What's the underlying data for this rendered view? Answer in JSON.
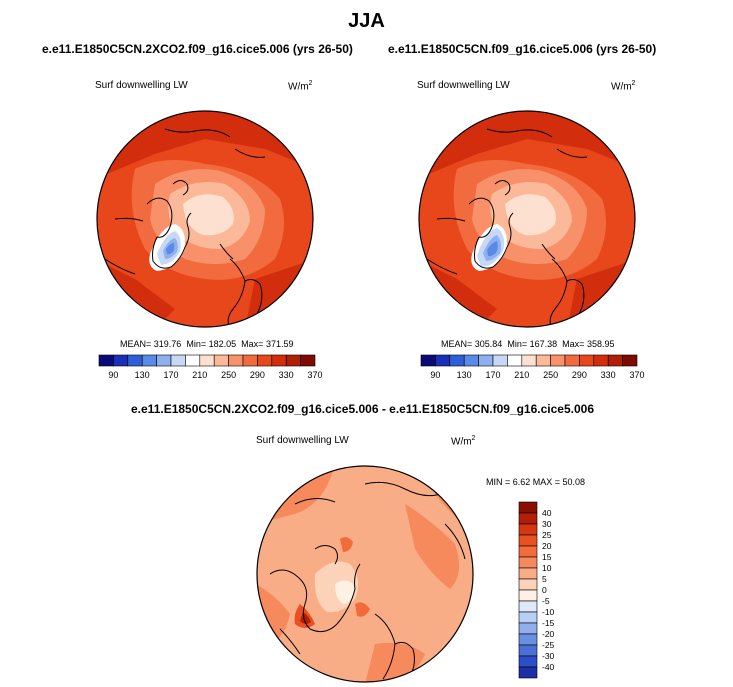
{
  "header": {
    "season": "JJA"
  },
  "panels": [
    {
      "case": "e.e11.E1850C5CN.2XCO2.f09_g16.cice5.006 (yrs 26-50)",
      "variable": "Surf downwelling LW",
      "units": "W/m",
      "units_exp": "2",
      "mean_label": "MEAN=",
      "mean": "319.76",
      "min_label": "Min=",
      "min": "182.05",
      "max_label": "Max=",
      "max": "371.59"
    },
    {
      "case": "e.e11.E1850C5CN.f09_g16.cice5.006 (yrs 26-50)",
      "variable": "Surf downwelling LW",
      "units": "W/m",
      "units_exp": "2",
      "mean_label": "MEAN=",
      "mean": "305.84",
      "min_label": "Min=",
      "min": "167.38",
      "max_label": "Max=",
      "max": "358.95"
    }
  ],
  "colorbar_abs": {
    "ticks": [
      "90",
      "130",
      "170",
      "210",
      "250",
      "290",
      "330",
      "370"
    ],
    "colors": [
      "#0a0a78",
      "#1a2fb8",
      "#2f5fd8",
      "#5a8ae8",
      "#8fb0f0",
      "#c7d8f6",
      "#ffffff",
      "#fde0d0",
      "#fbb99a",
      "#f8916a",
      "#f26b3e",
      "#e8471c",
      "#d22e0e",
      "#b01e06",
      "#7e0a02"
    ]
  },
  "diff_panel": {
    "case": "e.e11.E1850C5CN.2XCO2.f09_g16.cice5.006 - e.e11.E1850C5CN.f09_g16.cice5.006",
    "variable": "Surf downwelling LW",
    "units": "W/m",
    "units_exp": "2",
    "minmax_label": "MIN =  6.62 MAX =  50.08"
  },
  "colorbar_diff": {
    "ticks": [
      "40",
      "30",
      "25",
      "20",
      "15",
      "10",
      "5",
      "0",
      "-5",
      "-10",
      "-15",
      "-20",
      "-25",
      "-30",
      "-40"
    ],
    "colors": [
      "#8a0e02",
      "#b41e08",
      "#d63612",
      "#ea5020",
      "#f26c3a",
      "#f68a5c",
      "#f9ad86",
      "#fcd2b8",
      "#fff0e4",
      "#dde8fa",
      "#b8cef4",
      "#8fb0ec",
      "#6a90e4",
      "#4a70d8",
      "#2e4ec8",
      "#1a2fa8"
    ]
  }
}
